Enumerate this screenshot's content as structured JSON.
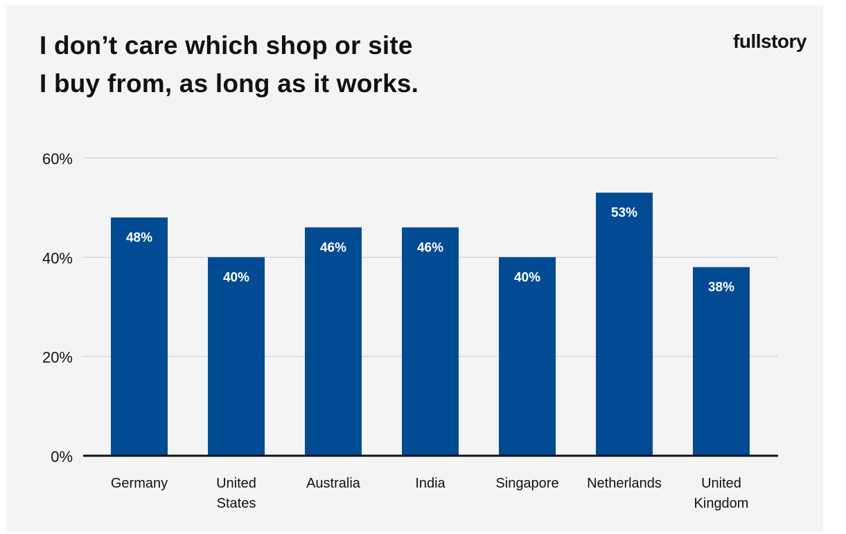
{
  "header": {
    "title_line1": "I don’t care which shop or site",
    "title_line2": "I buy from, as long as it works.",
    "brand": "fullstory"
  },
  "colors": {
    "bar": "#004b93",
    "bar_label": "#ffffff",
    "gridline": "#cccccc",
    "axis": "#111111",
    "text": "#111111",
    "background": "#f4f4f4"
  },
  "chart_data": {
    "type": "bar",
    "title": "I don’t care which shop or site I buy from, as long as it works.",
    "categories": [
      [
        "Germany"
      ],
      [
        "United",
        "States"
      ],
      [
        "Australia"
      ],
      [
        "India"
      ],
      [
        "Singapore"
      ],
      [
        "Netherlands"
      ],
      [
        "United",
        "Kingdom"
      ]
    ],
    "values": [
      48,
      40,
      46,
      46,
      40,
      53,
      38
    ],
    "value_labels": [
      "48%",
      "40%",
      "46%",
      "46%",
      "40%",
      "53%",
      "38%"
    ],
    "y_ticks": [
      0,
      20,
      40,
      60
    ],
    "y_tick_labels": [
      "0%",
      "20%",
      "40%",
      "60%"
    ],
    "ylim": [
      0,
      60
    ],
    "xlabel": "",
    "ylabel": "",
    "grid": true,
    "legend": "none"
  }
}
